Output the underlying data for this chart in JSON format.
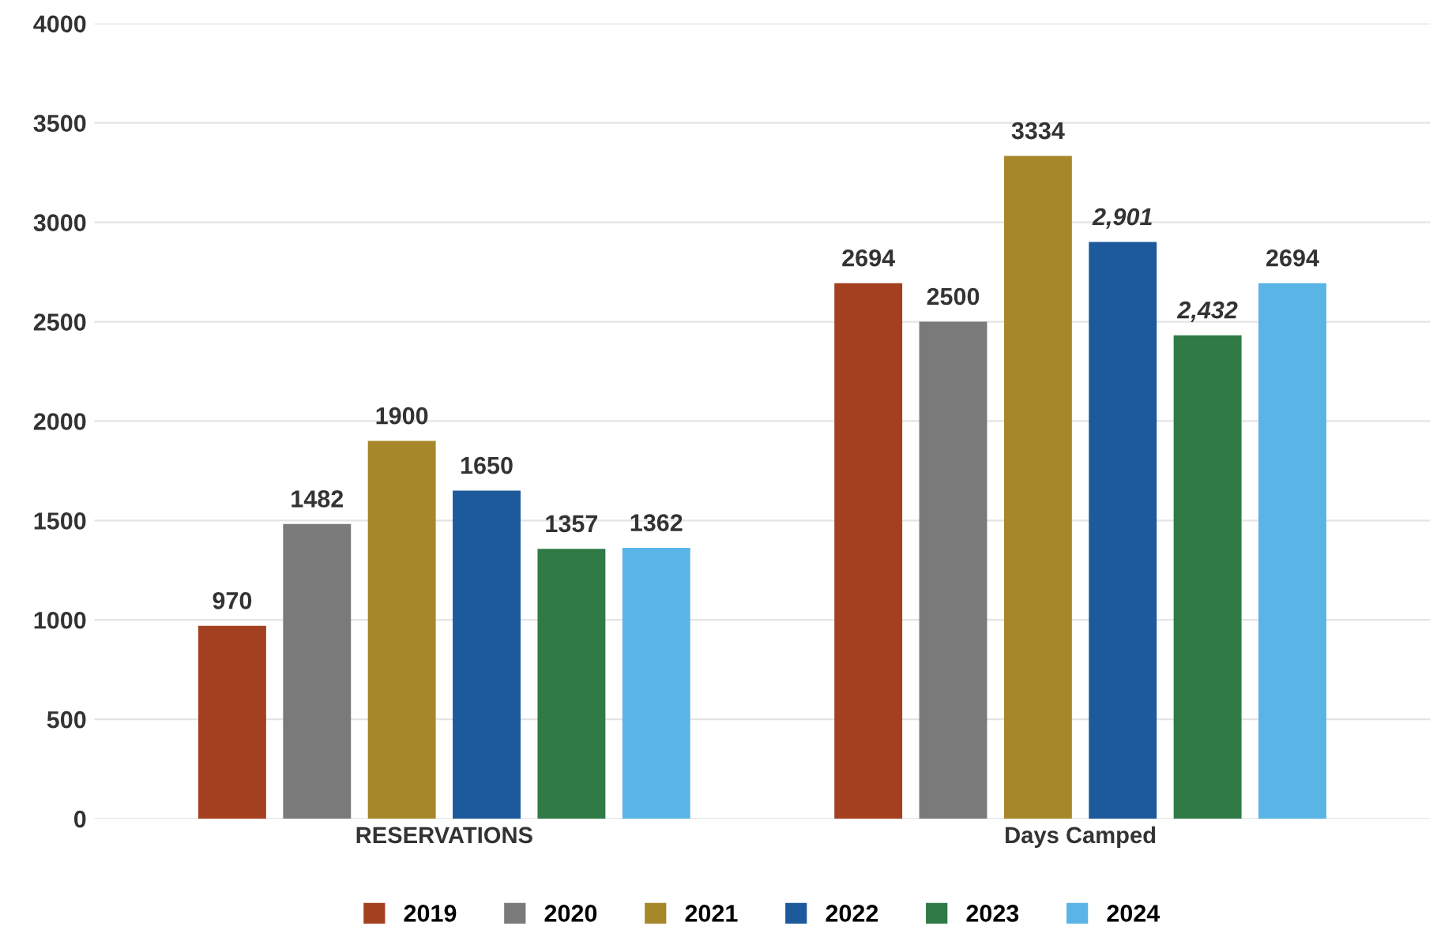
{
  "chart_data": {
    "type": "bar",
    "categories": [
      "RESERVATIONS",
      "Days Camped"
    ],
    "series": [
      {
        "name": "2019",
        "color": "#a3401f",
        "values": [
          970,
          2694
        ],
        "value_labels": [
          "970",
          "2694"
        ]
      },
      {
        "name": "2020",
        "color": "#7a7a7a",
        "values": [
          1482,
          2500
        ],
        "value_labels": [
          "1482",
          "2500"
        ]
      },
      {
        "name": "2021",
        "color": "#a6872a",
        "values": [
          1900,
          3334
        ],
        "value_labels": [
          "1900",
          "3334"
        ]
      },
      {
        "name": "2022",
        "color": "#1c5a9c",
        "values": [
          1650,
          2901
        ],
        "value_labels": [
          "1650",
          "2,901"
        ]
      },
      {
        "name": "2023",
        "color": "#2f7a45",
        "values": [
          1357,
          2432
        ],
        "value_labels": [
          "1357",
          "2,432"
        ]
      },
      {
        "name": "2024",
        "color": "#5bb4e6",
        "values": [
          1362,
          2694
        ],
        "value_labels": [
          "1362",
          "2694"
        ]
      }
    ],
    "ylim": [
      0,
      4000
    ],
    "yticks": [
      0,
      500,
      1000,
      1500,
      2000,
      2500,
      3000,
      3500,
      4000
    ],
    "grid": "y",
    "legend": "bottom"
  }
}
